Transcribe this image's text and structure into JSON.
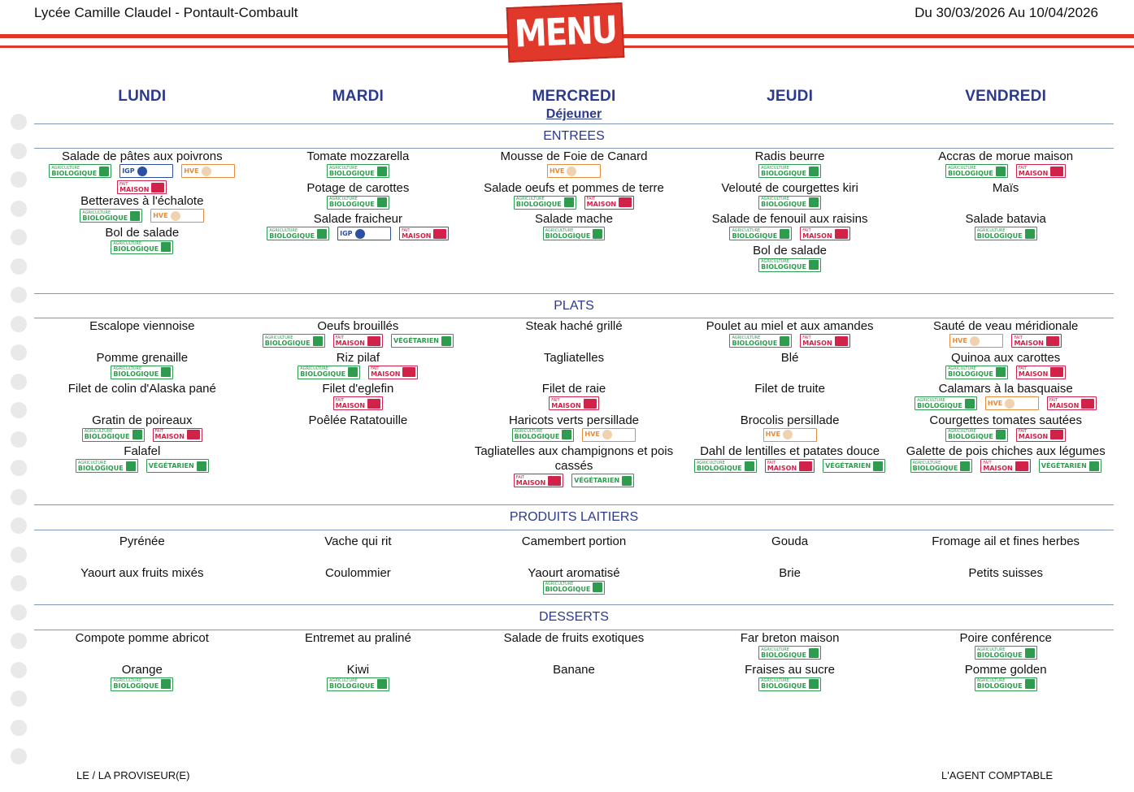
{
  "header": {
    "school": "Lycée Camille Claudel - Pontault-Combault",
    "menu_logo": "MENU",
    "period": "Du 30/03/2026 Au 10/04/2026"
  },
  "days": [
    "LUNDI",
    "MARDI",
    "MERCREDI",
    "JEUDI",
    "VENDREDI"
  ],
  "meal": "Déjeuner",
  "label_text": {
    "bio_top": "AGRICULTURE",
    "bio": "BIOLOGIQUE",
    "maison_top": "FAIT",
    "maison": "MAISON",
    "veg": "VÉGÉTARIEN",
    "hve": "HVE",
    "igp": "IGP"
  },
  "sections": [
    {
      "title": "ENTREES",
      "days": [
        [
          {
            "name": "Salade de pâtes aux poivrons",
            "labels": [
              "bio",
              "igp",
              "hve",
              "maison"
            ]
          },
          {
            "name": "Betteraves à l'échalote",
            "labels": [
              "bio",
              "hve"
            ]
          },
          {
            "name": "Bol de salade",
            "labels": [
              "bio"
            ]
          }
        ],
        [
          {
            "name": "Tomate mozzarella",
            "labels": [
              "bio"
            ]
          },
          {
            "name": "Potage de carottes",
            "labels": [
              "bio"
            ]
          },
          {
            "name": "Salade fraicheur",
            "labels": [
              "bio",
              "igp",
              "maison"
            ]
          }
        ],
        [
          {
            "name": "Mousse de Foie de Canard",
            "labels": [
              "hve"
            ]
          },
          {
            "name": "Salade oeufs et pommes de terre",
            "labels": [
              "bio",
              "maison"
            ]
          },
          {
            "name": "Salade mache",
            "labels": [
              "bio"
            ]
          }
        ],
        [
          {
            "name": "Radis beurre",
            "labels": [
              "bio"
            ]
          },
          {
            "name": "Velouté de courgettes kiri",
            "labels": [
              "bio"
            ]
          },
          {
            "name": "Salade de fenouil aux raisins",
            "labels": [
              "bio",
              "maison"
            ]
          },
          {
            "name": "Bol de salade",
            "labels": [
              "bio"
            ]
          }
        ],
        [
          {
            "name": "Accras de morue maison",
            "labels": [
              "bio",
              "maison"
            ]
          },
          {
            "name": "Maïs",
            "labels": []
          },
          {
            "name": "Salade batavia",
            "labels": [
              "bio"
            ]
          }
        ]
      ]
    },
    {
      "title": "PLATS",
      "days": [
        [
          {
            "name": "Escalope viennoise",
            "labels": []
          },
          {
            "name": "Pomme grenaille",
            "labels": [
              "bio"
            ]
          },
          {
            "name": "Filet de colin d'Alaska pané",
            "labels": []
          },
          {
            "name": "Gratin de poireaux",
            "labels": [
              "bio",
              "maison"
            ]
          },
          {
            "name": "Falafel",
            "labels": [
              "bio",
              "veg"
            ]
          }
        ],
        [
          {
            "name": "Oeufs brouillés",
            "labels": [
              "bio",
              "maison",
              "veg"
            ]
          },
          {
            "name": "Riz pilaf",
            "labels": [
              "bio",
              "maison"
            ]
          },
          {
            "name": "Filet d'eglefin",
            "labels": [
              "maison"
            ]
          },
          {
            "name": "Poêlée Ratatouille",
            "labels": []
          }
        ],
        [
          {
            "name": "Steak haché grillé",
            "labels": []
          },
          {
            "name": "Tagliatelles",
            "labels": []
          },
          {
            "name": "Filet de raie",
            "labels": [
              "maison"
            ]
          },
          {
            "name": "Haricots verts persillade",
            "labels": [
              "bio",
              "hve"
            ]
          },
          {
            "name": "Tagliatelles aux champignons et pois cassés",
            "labels": [
              "maison",
              "veg"
            ]
          }
        ],
        [
          {
            "name": "Poulet au miel et aux amandes",
            "labels": [
              "bio",
              "maison"
            ]
          },
          {
            "name": "Blé",
            "labels": []
          },
          {
            "name": "Filet de truite",
            "labels": []
          },
          {
            "name": "Brocolis persillade",
            "labels": [
              "hve"
            ]
          },
          {
            "name": "Dahl de lentilles et patates douce",
            "labels": [
              "bio",
              "maison",
              "veg"
            ]
          }
        ],
        [
          {
            "name": "Sauté de veau méridionale",
            "labels": [
              "hve",
              "maison"
            ]
          },
          {
            "name": "Quinoa aux carottes",
            "labels": [
              "bio",
              "maison"
            ]
          },
          {
            "name": "Calamars à la basquaise",
            "labels": [
              "bio",
              "hve",
              "maison"
            ]
          },
          {
            "name": "Courgettes tomates sautées",
            "labels": [
              "bio",
              "maison"
            ]
          },
          {
            "name": "Galette de pois chiches aux légumes",
            "labels": [
              "bio",
              "maison",
              "veg"
            ]
          }
        ]
      ]
    },
    {
      "title": "PRODUITS LAITIERS",
      "days": [
        [
          {
            "name": "Pyrénée",
            "labels": []
          },
          {
            "name": "Yaourt aux fruits mixés",
            "labels": []
          }
        ],
        [
          {
            "name": "Vache qui rit",
            "labels": []
          },
          {
            "name": "Coulommier",
            "labels": []
          }
        ],
        [
          {
            "name": "Camembert portion",
            "labels": []
          },
          {
            "name": "Yaourt aromatisé",
            "labels": [
              "bio"
            ]
          }
        ],
        [
          {
            "name": "Gouda",
            "labels": []
          },
          {
            "name": "Brie",
            "labels": []
          }
        ],
        [
          {
            "name": "Fromage ail et fines herbes",
            "labels": []
          },
          {
            "name": "Petits suisses",
            "labels": []
          }
        ]
      ]
    },
    {
      "title": "DESSERTS",
      "days": [
        [
          {
            "name": "Compote pomme abricot",
            "labels": []
          },
          {
            "name": "Orange",
            "labels": [
              "bio"
            ]
          }
        ],
        [
          {
            "name": "Entremet au praliné",
            "labels": []
          },
          {
            "name": "Kiwi",
            "labels": [
              "bio"
            ]
          }
        ],
        [
          {
            "name": "Salade de fruits exotiques",
            "labels": []
          },
          {
            "name": "Banane",
            "labels": []
          }
        ],
        [
          {
            "name": "Far breton maison",
            "labels": [
              "bio"
            ]
          },
          {
            "name": "Fraises au sucre",
            "labels": [
              "bio"
            ]
          }
        ],
        [
          {
            "name": "Poire conférence",
            "labels": [
              "bio"
            ]
          },
          {
            "name": "Pomme golden",
            "labels": [
              "bio"
            ]
          }
        ]
      ]
    }
  ],
  "footer": {
    "left": "LE / LA PROVISEUR(E)",
    "right": "L'AGENT COMPTABLE"
  },
  "colors": {
    "accent_red": "#e0392c",
    "title_blue": "#2c3a8c",
    "rule_blue": "#7f98b8",
    "bio_green": "#2e9c4f",
    "maison_red": "#d1224a",
    "hve_orange": "#e88b3a",
    "igp_blue": "#2a4fa3"
  }
}
